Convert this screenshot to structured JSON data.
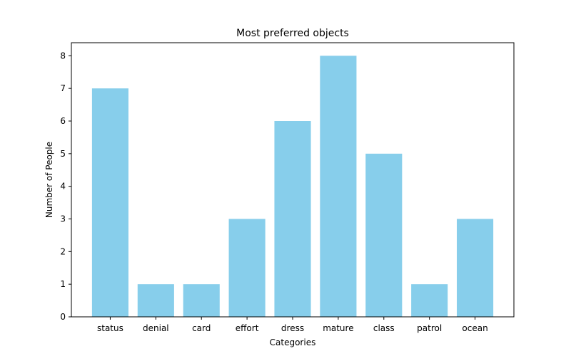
{
  "chart_data": {
    "type": "bar",
    "title": "Most preferred objects",
    "xlabel": "Categories",
    "ylabel": "Number of People",
    "categories": [
      "status",
      "denial",
      "card",
      "effort",
      "dress",
      "mature",
      "class",
      "patrol",
      "ocean"
    ],
    "values": [
      7,
      1,
      1,
      3,
      6,
      8,
      5,
      1,
      3
    ],
    "ylim": [
      0,
      8.4
    ],
    "yticks": [
      0,
      1,
      2,
      3,
      4,
      5,
      6,
      7,
      8
    ],
    "grid": false,
    "legend": "none",
    "bar_color": "#87ceeb"
  }
}
